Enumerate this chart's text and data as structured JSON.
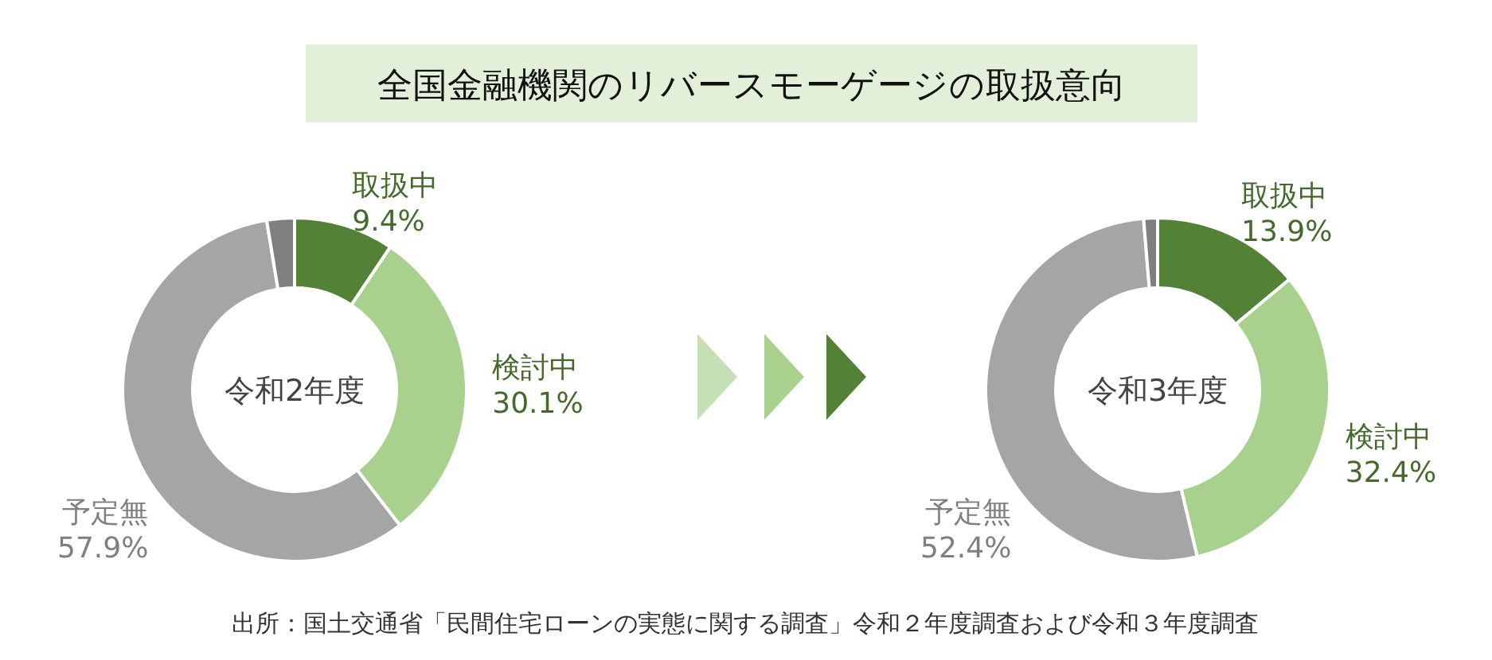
{
  "chart_data": [
    {
      "type": "donut",
      "title": "全国金融機関のリバースモーゲージの取扱意向",
      "subtitle": "令和2年度",
      "categories": [
        "取扱中",
        "検討中",
        "予定無",
        null
      ],
      "values": [
        9.4,
        30.1,
        57.9,
        2.6
      ],
      "value_labels": [
        "9.4%",
        "30.1%",
        "57.9%",
        null
      ],
      "colors": [
        "#538135",
        "#a9d18e",
        "#a5a5a5",
        "#7f7f7f"
      ],
      "annotations": [
        "出所：国土交通省「民間住宅ローンの実態に関する調査」令和２年度調査および令和３年度調査"
      ]
    },
    {
      "type": "donut",
      "subtitle": "令和3年度",
      "categories": [
        "取扱中",
        "検討中",
        "予定無",
        null
      ],
      "values": [
        13.9,
        32.4,
        52.4,
        1.3
      ],
      "value_labels": [
        "13.9%",
        "32.4%",
        "52.4%",
        null
      ],
      "colors": [
        "#538135",
        "#a9d18e",
        "#a5a5a5",
        "#7f7f7f"
      ]
    }
  ]
}
